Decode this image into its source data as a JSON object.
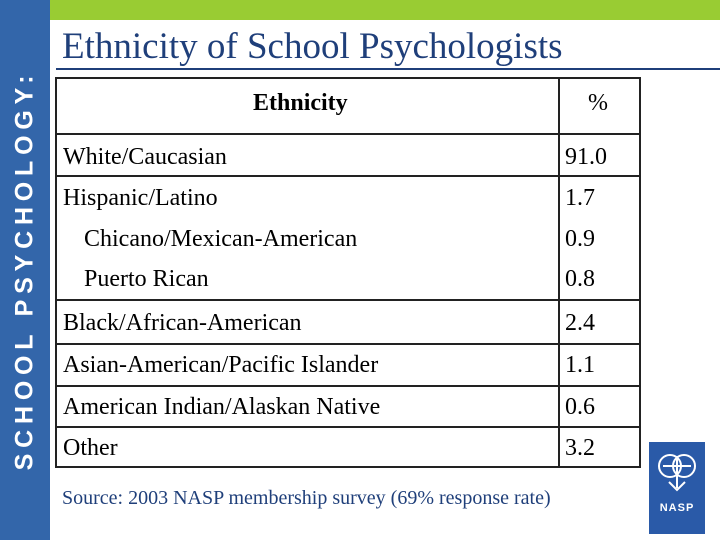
{
  "sidebar_text": "SCHOOL PSYCHOLOGY:",
  "title": "Ethnicity of School Psychologists",
  "table": {
    "headers": {
      "ethnicity": "Ethnicity",
      "percent": "%"
    },
    "rows": [
      {
        "label": "White/Caucasian",
        "value": "91.0"
      },
      {
        "label": "Hispanic/Latino",
        "value": "1.7"
      },
      {
        "label": "Chicano/Mexican-American",
        "value": "0.9"
      },
      {
        "label": "Puerto Rican",
        "value": "0.8"
      },
      {
        "label": "Black/African-American",
        "value": "2.4"
      },
      {
        "label": "Asian-American/Pacific Islander",
        "value": "1.1"
      },
      {
        "label": "American Indian/Alaskan Native",
        "value": "0.6"
      },
      {
        "label": "Other",
        "value": "3.2"
      }
    ]
  },
  "source": "Source: 2003 NASP membership survey (69% response rate)",
  "logo_text": "NASP",
  "colors": {
    "green_bar": "#99cc33",
    "blue_bar": "#3366aa",
    "title_blue": "#1f3f7a"
  }
}
